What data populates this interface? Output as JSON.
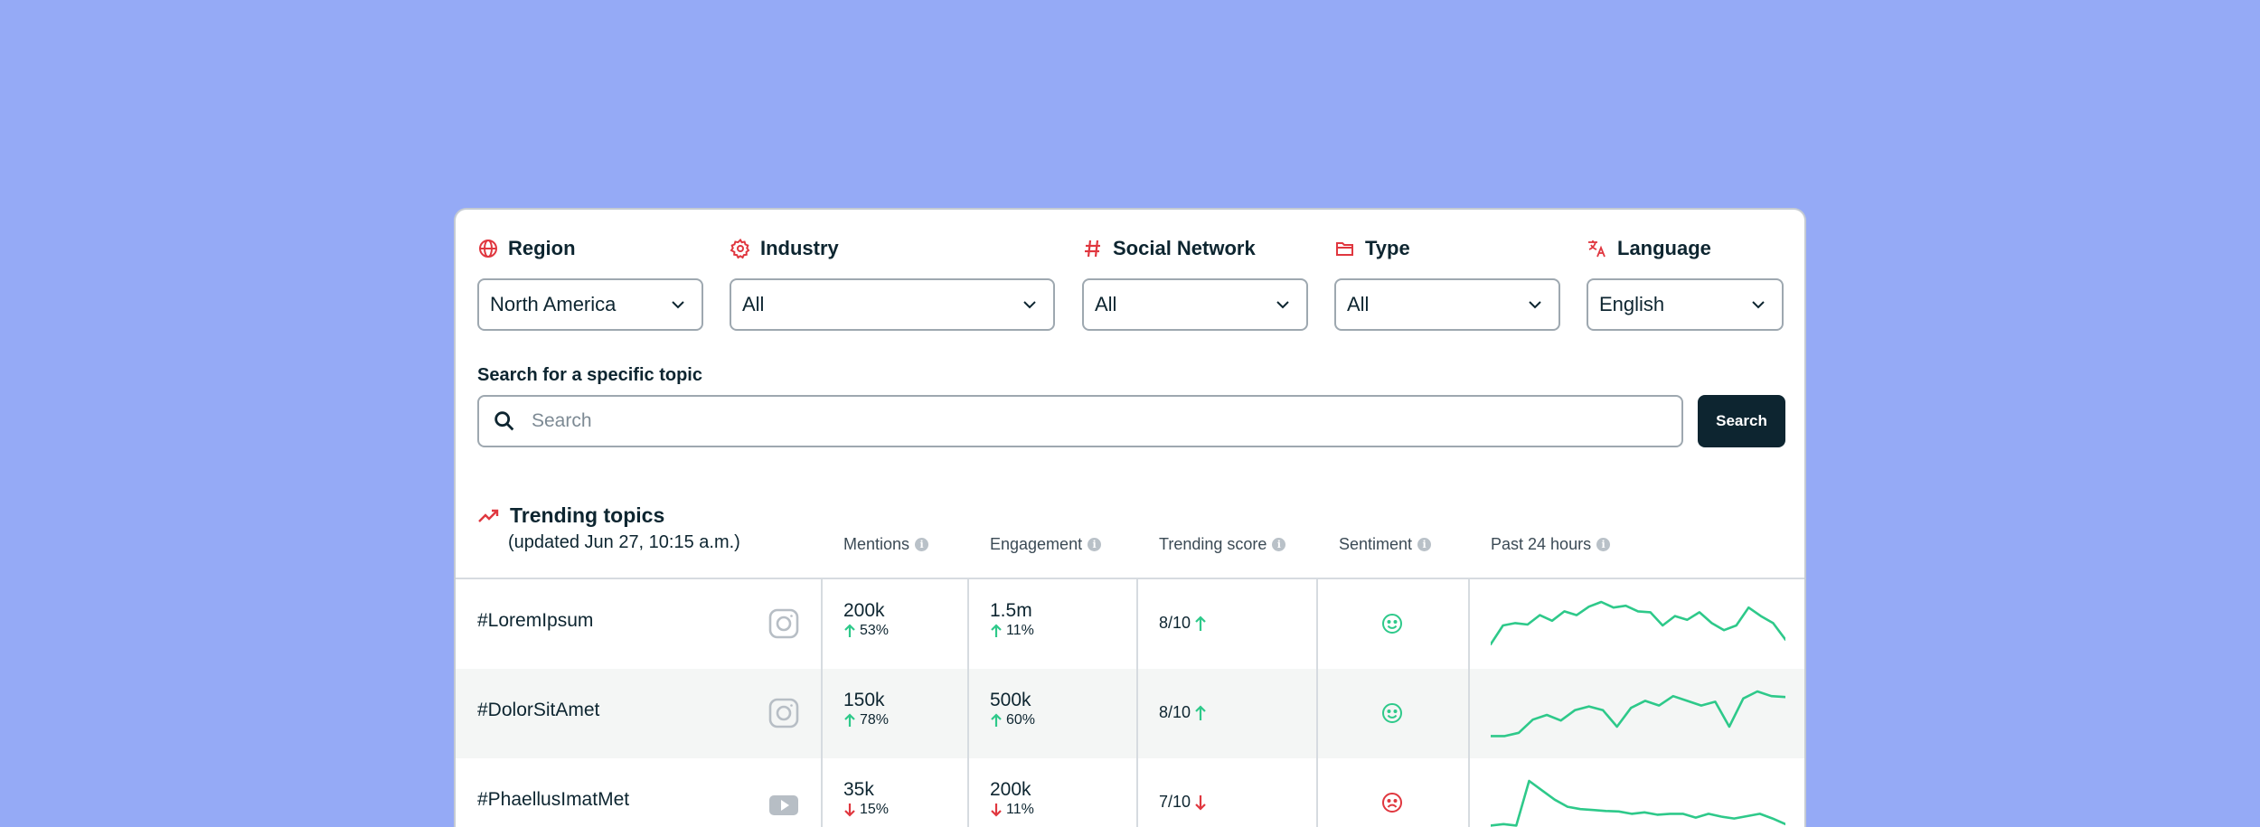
{
  "filters": {
    "region": {
      "label": "Region",
      "value": "North America",
      "icon": "globe-icon"
    },
    "industry": {
      "label": "Industry",
      "value": "All",
      "icon": "gear-icon"
    },
    "social_network": {
      "label": "Social Network",
      "value": "All",
      "icon": "hash-icon"
    },
    "type": {
      "label": "Type",
      "value": "All",
      "icon": "folder-icon"
    },
    "language": {
      "label": "Language",
      "value": "English",
      "icon": "translate-icon"
    }
  },
  "search": {
    "label": "Search for a specific topic",
    "placeholder": "Search",
    "value": "",
    "button_label": "Search"
  },
  "trending": {
    "title": "Trending topics",
    "subtitle": "(updated Jun 27, 10:15 a.m.)",
    "columns": {
      "mentions": "Mentions",
      "engagement": "Engagement",
      "trending_score": "Trending score",
      "sentiment": "Sentiment",
      "past_24h": "Past 24 hours"
    },
    "info_glyph": "i",
    "rows": [
      {
        "topic": "#LoremIpsum",
        "network_icon": "instagram-icon",
        "mentions": "200k",
        "mentions_change": "53%",
        "mentions_dir": "up",
        "engagement": "1.5m",
        "engagement_change": "11%",
        "engagement_dir": "up",
        "score": "8/10",
        "score_dir": "up",
        "sentiment": "positive",
        "sparkline": [
          0.1,
          0.5,
          0.55,
          0.52,
          0.72,
          0.6,
          0.8,
          0.72,
          0.9,
          1.0,
          0.88,
          0.92,
          0.8,
          0.78,
          0.5,
          0.7,
          0.62,
          0.78,
          0.55,
          0.4,
          0.5,
          0.88,
          0.7,
          0.55,
          0.2
        ]
      },
      {
        "topic": "#DolorSitAmet",
        "network_icon": "instagram-icon",
        "mentions": "150k",
        "mentions_change": "78%",
        "mentions_dir": "up",
        "engagement": "500k",
        "engagement_change": "60%",
        "engagement_dir": "up",
        "score": "8/10",
        "score_dir": "up",
        "sentiment": "positive",
        "sparkline": [
          0.05,
          0.05,
          0.12,
          0.4,
          0.5,
          0.38,
          0.6,
          0.68,
          0.6,
          0.25,
          0.65,
          0.8,
          0.7,
          0.9,
          0.8,
          0.7,
          0.78,
          0.25,
          0.85,
          1.0,
          0.9,
          0.88
        ]
      },
      {
        "topic": "#PhaellusImatMet",
        "network_icon": "youtube-icon",
        "mentions": "35k",
        "mentions_change": "15%",
        "mentions_dir": "down",
        "engagement": "200k",
        "engagement_change": "11%",
        "engagement_dir": "down",
        "score": "7/10",
        "score_dir": "down",
        "sentiment": "negative",
        "sparkline": [
          0.05,
          0.08,
          0.05,
          1.0,
          0.8,
          0.6,
          0.45,
          0.4,
          0.38,
          0.36,
          0.35,
          0.3,
          0.33,
          0.28,
          0.3,
          0.3,
          0.22,
          0.3,
          0.24,
          0.2,
          0.25,
          0.3,
          0.2,
          0.08
        ]
      }
    ]
  },
  "colors": {
    "accent": "#e0373f",
    "positive": "#2ec98a",
    "negative": "#e0373f",
    "dark": "#0d2530",
    "background": "#95aaf6"
  }
}
